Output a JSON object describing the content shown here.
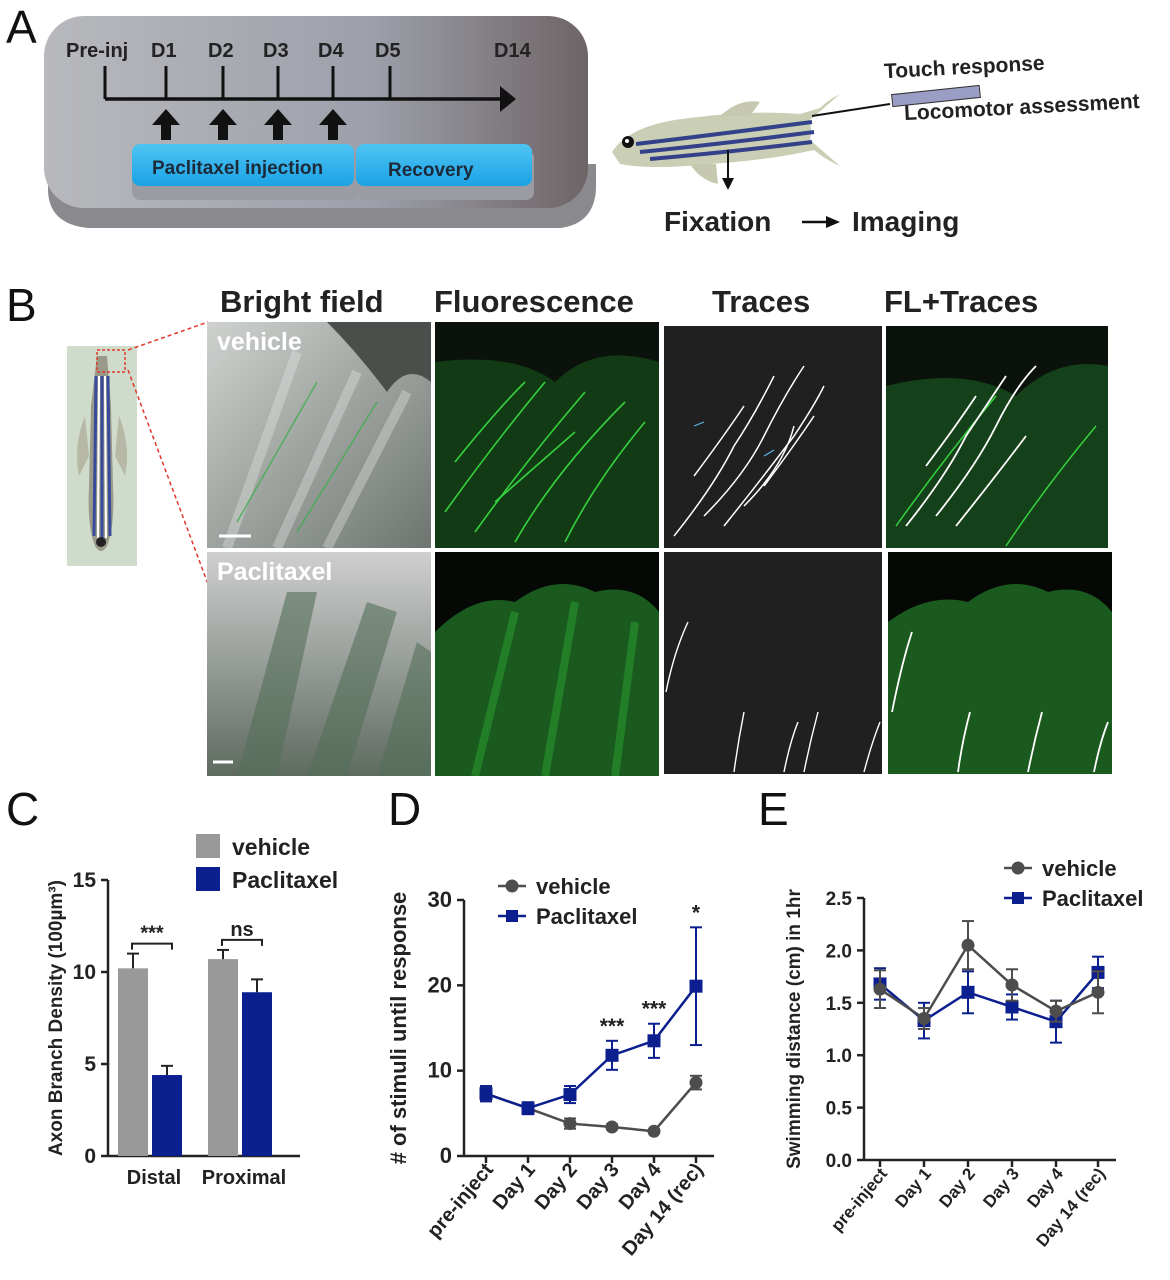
{
  "panels": {
    "a": "A",
    "b": "B",
    "c": "C",
    "d": "D",
    "e": "E"
  },
  "panel_a": {
    "timeline_labels": [
      "Pre-inj",
      "D1",
      "D2",
      "D3",
      "D4",
      "D5",
      "D14"
    ],
    "injection_label": "Paclitaxel injection",
    "recovery_label": "Recovery",
    "touch_response": "Touch response",
    "locomotor": "Locomotor assessment",
    "fixation": "Fixation",
    "imaging": "Imaging"
  },
  "panel_b": {
    "columns": [
      "Bright field",
      "Fluorescence",
      "Traces",
      "FL+Traces"
    ],
    "rows": [
      "vehicle",
      "Paclitaxel"
    ]
  },
  "chart_data": [
    {
      "type": "bar",
      "ylabel": "Axon Branch Density (100µm³)",
      "categories": [
        "Distal",
        "Proximal"
      ],
      "ylim": [
        0,
        15
      ],
      "yticks": [
        0,
        5,
        10,
        15
      ],
      "series": [
        {
          "name": "vehicle",
          "color": "#999999",
          "values": [
            10.2,
            10.7
          ],
          "errors": [
            0.8,
            0.5
          ]
        },
        {
          "name": "Paclitaxel",
          "color": "#0b1f8f",
          "values": [
            4.4,
            8.9
          ],
          "errors": [
            0.5,
            0.7
          ]
        }
      ],
      "significance": [
        "***",
        "ns"
      ],
      "legend": "top-right"
    },
    {
      "type": "line",
      "ylabel": "# of stimuli until response",
      "categories": [
        "pre-inject",
        "Day 1",
        "Day 2",
        "Day 3",
        "Day 4",
        "Day 14 (rec)"
      ],
      "ylim": [
        0,
        30
      ],
      "yticks": [
        0,
        10,
        20,
        30
      ],
      "series": [
        {
          "name": "vehicle",
          "color": "#4d4d4d",
          "marker": "circle",
          "values": [
            7.3,
            5.6,
            3.8,
            3.4,
            2.9,
            8.6
          ],
          "errors": [
            0.8,
            0.6,
            0.6,
            0.3,
            0.2,
            0.8
          ]
        },
        {
          "name": "Paclitaxel",
          "color": "#0b1f8f",
          "marker": "square",
          "values": [
            7.3,
            5.6,
            7.2,
            11.8,
            13.5,
            19.9
          ],
          "errors": [
            0.9,
            0.7,
            1.0,
            1.7,
            2.0,
            6.9
          ]
        }
      ],
      "significance": [
        "",
        "",
        "",
        "***",
        "***",
        "*"
      ],
      "legend": "top-left"
    },
    {
      "type": "line",
      "ylabel": "Swimming distance (cm) in 1hr",
      "categories": [
        "pre-inject",
        "Day 1",
        "Day 2",
        "Day 3",
        "Day 4",
        "Day 14 (rec)"
      ],
      "ylim": [
        0,
        2.5
      ],
      "yticks": [
        "0.0",
        "0.5",
        "1.0",
        "1.5",
        "2.0",
        "2.5"
      ],
      "series": [
        {
          "name": "vehicle",
          "color": "#4d4d4d",
          "marker": "circle",
          "values": [
            1.63,
            1.35,
            2.05,
            1.67,
            1.42,
            1.6
          ],
          "errors": [
            0.18,
            0.1,
            0.23,
            0.15,
            0.1,
            0.2
          ]
        },
        {
          "name": "Paclitaxel",
          "color": "#0b1f8f",
          "marker": "square",
          "values": [
            1.68,
            1.33,
            1.6,
            1.46,
            1.32,
            1.79
          ],
          "errors": [
            0.15,
            0.17,
            0.2,
            0.12,
            0.2,
            0.15
          ]
        }
      ],
      "legend": "top-right"
    }
  ]
}
